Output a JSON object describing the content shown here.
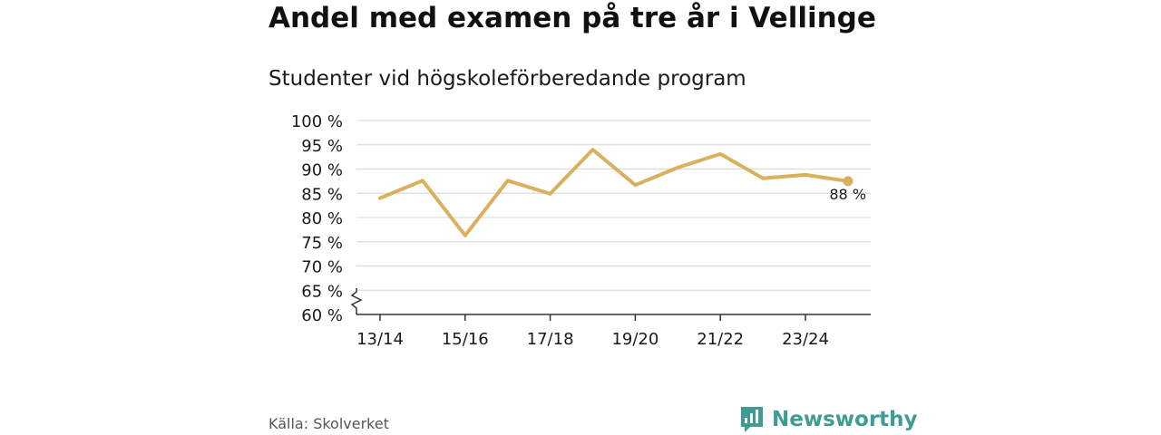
{
  "header": {
    "title": "Andel med examen på tre år i Vellinge",
    "subtitle": "Studenter vid högskoleförberedande program"
  },
  "footer": {
    "source": "Källa: Skolverket",
    "brand": "Newsworthy",
    "brand_icon": "bar-chart-speech-bubble-icon"
  },
  "colors": {
    "line": "#d9b15e",
    "grid": "#dddddd",
    "axis": "#333333",
    "brand": "#3f9c94"
  },
  "chart_data": {
    "type": "line",
    "x": [
      "13/14",
      "14/15",
      "15/16",
      "16/17",
      "17/18",
      "18/19",
      "19/20",
      "20/21",
      "21/22",
      "22/23",
      "23/24",
      "24/25"
    ],
    "x_tick_labels": [
      "13/14",
      "15/16",
      "17/18",
      "19/20",
      "21/22",
      "23/24"
    ],
    "series": [
      {
        "values": [
          84,
          87.6,
          76.3,
          87.6,
          84.9,
          94,
          86.7,
          90.3,
          93.1,
          88.1,
          88.8,
          87.5
        ]
      }
    ],
    "y_tick_values": [
      60,
      65,
      70,
      75,
      80,
      85,
      90,
      95,
      100
    ],
    "y_tick_labels": [
      "60 %",
      "65 %",
      "70 %",
      "75 %",
      "80 %",
      "85 %",
      "90 %",
      "95 %",
      "100 %"
    ],
    "ylim": [
      60,
      100
    ],
    "axis_break": true,
    "grid": true,
    "last_value_label": "88 %",
    "xlabel": "",
    "ylabel": ""
  }
}
